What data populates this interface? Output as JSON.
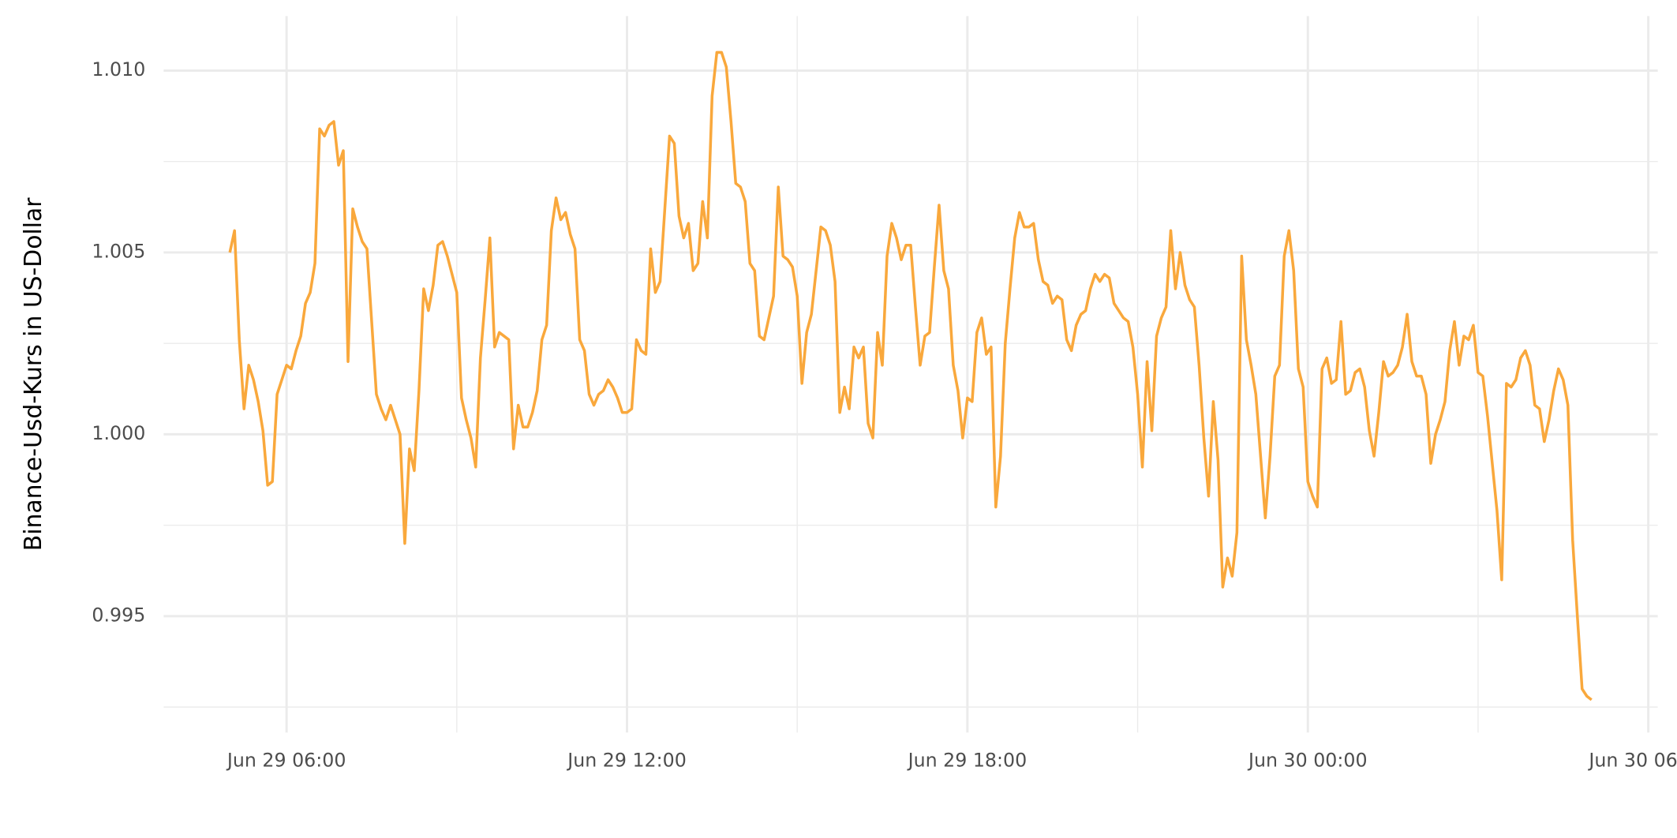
{
  "chart_data": {
    "type": "line",
    "y_label": "Binance-Usd-Kurs in US-Dollar",
    "color": "#f9a83c",
    "grid": true,
    "xlim": [
      "Jun 29 03:50",
      "Jun 30 06:10"
    ],
    "xticks": [
      "Jun 29 06:00",
      "Jun 29 12:00",
      "Jun 29 18:00",
      "Jun 30 00:00",
      "Jun 30 06:00"
    ],
    "ylim": [
      0.9918,
      1.0115
    ],
    "yticks": [
      {
        "value": 0.995,
        "label": "0.995"
      },
      {
        "value": 1.0,
        "label": "1.000"
      },
      {
        "value": 1.005,
        "label": "1.005"
      },
      {
        "value": 1.01,
        "label": "1.010"
      }
    ],
    "x": [
      "Jun 29 05:00",
      "Jun 29 05:05",
      "Jun 29 05:10",
      "Jun 29 05:15",
      "Jun 29 05:20",
      "Jun 29 05:25",
      "Jun 29 05:30",
      "Jun 29 05:35",
      "Jun 29 05:40",
      "Jun 29 05:45",
      "Jun 29 05:50",
      "Jun 29 05:55",
      "Jun 29 06:00",
      "Jun 29 06:05",
      "Jun 29 06:10",
      "Jun 29 06:15",
      "Jun 29 06:20",
      "Jun 29 06:25",
      "Jun 29 06:30",
      "Jun 29 06:35",
      "Jun 29 06:40",
      "Jun 29 06:45",
      "Jun 29 06:50",
      "Jun 29 06:55",
      "Jun 29 07:00",
      "Jun 29 07:05",
      "Jun 29 07:10",
      "Jun 29 07:15",
      "Jun 29 07:20",
      "Jun 29 07:25",
      "Jun 29 07:30",
      "Jun 29 07:35",
      "Jun 29 07:40",
      "Jun 29 07:45",
      "Jun 29 07:50",
      "Jun 29 07:55",
      "Jun 29 08:00",
      "Jun 29 08:05",
      "Jun 29 08:10",
      "Jun 29 08:15",
      "Jun 29 08:20",
      "Jun 29 08:25",
      "Jun 29 08:30",
      "Jun 29 08:35",
      "Jun 29 08:40",
      "Jun 29 08:45",
      "Jun 29 08:50",
      "Jun 29 08:55",
      "Jun 29 09:00",
      "Jun 29 09:05",
      "Jun 29 09:10",
      "Jun 29 09:15",
      "Jun 29 09:20",
      "Jun 29 09:25",
      "Jun 29 09:30",
      "Jun 29 09:35",
      "Jun 29 09:40",
      "Jun 29 09:45",
      "Jun 29 09:50",
      "Jun 29 09:55",
      "Jun 29 10:00",
      "Jun 29 10:05",
      "Jun 29 10:10",
      "Jun 29 10:15",
      "Jun 29 10:20",
      "Jun 29 10:25",
      "Jun 29 10:30",
      "Jun 29 10:35",
      "Jun 29 10:40",
      "Jun 29 10:45",
      "Jun 29 10:50",
      "Jun 29 10:55",
      "Jun 29 11:00",
      "Jun 29 11:05",
      "Jun 29 11:10",
      "Jun 29 11:15",
      "Jun 29 11:20",
      "Jun 29 11:25",
      "Jun 29 11:30",
      "Jun 29 11:35",
      "Jun 29 11:40",
      "Jun 29 11:45",
      "Jun 29 11:50",
      "Jun 29 11:55",
      "Jun 29 12:00",
      "Jun 29 12:05",
      "Jun 29 12:10",
      "Jun 29 12:15",
      "Jun 29 12:20",
      "Jun 29 12:25",
      "Jun 29 12:30",
      "Jun 29 12:35",
      "Jun 29 12:40",
      "Jun 29 12:45",
      "Jun 29 12:50",
      "Jun 29 12:55",
      "Jun 29 13:00",
      "Jun 29 13:05",
      "Jun 29 13:10",
      "Jun 29 13:15",
      "Jun 29 13:20",
      "Jun 29 13:25",
      "Jun 29 13:30",
      "Jun 29 13:35",
      "Jun 29 13:40",
      "Jun 29 13:45",
      "Jun 29 13:50",
      "Jun 29 13:55",
      "Jun 29 14:00",
      "Jun 29 14:05",
      "Jun 29 14:10",
      "Jun 29 14:15",
      "Jun 29 14:20",
      "Jun 29 14:25",
      "Jun 29 14:30",
      "Jun 29 14:35",
      "Jun 29 14:40",
      "Jun 29 14:45",
      "Jun 29 14:50",
      "Jun 29 14:55",
      "Jun 29 15:00",
      "Jun 29 15:05",
      "Jun 29 15:10",
      "Jun 29 15:15",
      "Jun 29 15:20",
      "Jun 29 15:25",
      "Jun 29 15:30",
      "Jun 29 15:35",
      "Jun 29 15:40",
      "Jun 29 15:45",
      "Jun 29 15:50",
      "Jun 29 15:55",
      "Jun 29 16:00",
      "Jun 29 16:05",
      "Jun 29 16:10",
      "Jun 29 16:15",
      "Jun 29 16:20",
      "Jun 29 16:25",
      "Jun 29 16:30",
      "Jun 29 16:35",
      "Jun 29 16:40",
      "Jun 29 16:45",
      "Jun 29 16:50",
      "Jun 29 16:55",
      "Jun 29 17:00",
      "Jun 29 17:05",
      "Jun 29 17:10",
      "Jun 29 17:15",
      "Jun 29 17:20",
      "Jun 29 17:25",
      "Jun 29 17:30",
      "Jun 29 17:35",
      "Jun 29 17:40",
      "Jun 29 17:45",
      "Jun 29 17:50",
      "Jun 29 17:55",
      "Jun 29 18:00",
      "Jun 29 18:05",
      "Jun 29 18:10",
      "Jun 29 18:15",
      "Jun 29 18:20",
      "Jun 29 18:25",
      "Jun 29 18:30",
      "Jun 29 18:35",
      "Jun 29 18:40",
      "Jun 29 18:45",
      "Jun 29 18:50",
      "Jun 29 18:55",
      "Jun 29 19:00",
      "Jun 29 19:05",
      "Jun 29 19:10",
      "Jun 29 19:15",
      "Jun 29 19:20",
      "Jun 29 19:25",
      "Jun 29 19:30",
      "Jun 29 19:35",
      "Jun 29 19:40",
      "Jun 29 19:45",
      "Jun 29 19:50",
      "Jun 29 19:55",
      "Jun 29 20:00",
      "Jun 29 20:05",
      "Jun 29 20:10",
      "Jun 29 20:15",
      "Jun 29 20:20",
      "Jun 29 20:25",
      "Jun 29 20:30",
      "Jun 29 20:35",
      "Jun 29 20:40",
      "Jun 29 20:45",
      "Jun 29 20:50",
      "Jun 29 20:55",
      "Jun 29 21:00",
      "Jun 29 21:05",
      "Jun 29 21:10",
      "Jun 29 21:15",
      "Jun 29 21:20",
      "Jun 29 21:25",
      "Jun 29 21:30",
      "Jun 29 21:35",
      "Jun 29 21:40",
      "Jun 29 21:45",
      "Jun 29 21:50",
      "Jun 29 21:55",
      "Jun 29 22:00",
      "Jun 29 22:05",
      "Jun 29 22:10",
      "Jun 29 22:15",
      "Jun 29 22:20",
      "Jun 29 22:25",
      "Jun 29 22:30",
      "Jun 29 22:35",
      "Jun 29 22:40",
      "Jun 29 22:45",
      "Jun 29 22:50",
      "Jun 29 22:55",
      "Jun 29 23:00",
      "Jun 29 23:05",
      "Jun 29 23:10",
      "Jun 29 23:15",
      "Jun 29 23:20",
      "Jun 29 23:25",
      "Jun 29 23:30",
      "Jun 29 23:35",
      "Jun 29 23:40",
      "Jun 29 23:45",
      "Jun 29 23:50",
      "Jun 29 23:55",
      "Jun 30 00:00",
      "Jun 30 00:05",
      "Jun 30 00:10",
      "Jun 30 00:15",
      "Jun 30 00:20",
      "Jun 30 00:25",
      "Jun 30 00:30",
      "Jun 30 00:35",
      "Jun 30 00:40",
      "Jun 30 00:45",
      "Jun 30 00:50",
      "Jun 30 00:55",
      "Jun 30 01:00",
      "Jun 30 01:05",
      "Jun 30 01:10",
      "Jun 30 01:15",
      "Jun 30 01:20",
      "Jun 30 01:25",
      "Jun 30 01:30",
      "Jun 30 01:35",
      "Jun 30 01:40",
      "Jun 30 01:45",
      "Jun 30 01:50",
      "Jun 30 01:55",
      "Jun 30 02:00",
      "Jun 30 02:05",
      "Jun 30 02:10",
      "Jun 30 02:15",
      "Jun 30 02:20",
      "Jun 30 02:25",
      "Jun 30 02:30",
      "Jun 30 02:35",
      "Jun 30 02:40",
      "Jun 30 02:45",
      "Jun 30 02:50",
      "Jun 30 02:55",
      "Jun 30 03:00",
      "Jun 30 03:05",
      "Jun 30 03:10",
      "Jun 30 03:15",
      "Jun 30 03:20",
      "Jun 30 03:25",
      "Jun 30 03:30",
      "Jun 30 03:35",
      "Jun 30 03:40",
      "Jun 30 03:45",
      "Jun 30 03:50",
      "Jun 30 03:55",
      "Jun 30 04:00",
      "Jun 30 04:05",
      "Jun 30 04:10",
      "Jun 30 04:15",
      "Jun 30 04:20",
      "Jun 30 04:25",
      "Jun 30 04:30",
      "Jun 30 04:35",
      "Jun 30 04:40",
      "Jun 30 04:45",
      "Jun 30 04:50",
      "Jun 30 04:55",
      "Jun 30 05:00"
    ],
    "values": [
      1.005,
      1.0056,
      1.0026,
      1.0007,
      1.0019,
      1.0015,
      1.0009,
      1.0001,
      0.9986,
      0.9987,
      1.0011,
      1.0015,
      1.0019,
      1.0018,
      1.0023,
      1.0027,
      1.0036,
      1.0039,
      1.0047,
      1.0084,
      1.0082,
      1.0085,
      1.0086,
      1.0074,
      1.0078,
      1.002,
      1.0062,
      1.0057,
      1.0053,
      1.0051,
      1.0031,
      1.0011,
      1.0007,
      1.0004,
      1.0008,
      1.0004,
      1.0,
      0.997,
      0.9996,
      0.999,
      1.0012,
      1.004,
      1.0034,
      1.0041,
      1.0052,
      1.0053,
      1.0049,
      1.0044,
      1.0039,
      1.001,
      1.0004,
      0.9999,
      0.9991,
      1.0021,
      1.0037,
      1.0054,
      1.0024,
      1.0028,
      1.0027,
      1.0026,
      0.9996,
      1.0008,
      1.0002,
      1.0002,
      1.0006,
      1.0012,
      1.0026,
      1.003,
      1.0056,
      1.0065,
      1.0059,
      1.0061,
      1.0055,
      1.0051,
      1.0026,
      1.0023,
      1.0011,
      1.0008,
      1.0011,
      1.0012,
      1.0015,
      1.0013,
      1.001,
      1.0006,
      1.0006,
      1.0007,
      1.0026,
      1.0023,
      1.0022,
      1.0051,
      1.0039,
      1.0042,
      1.0062,
      1.0082,
      1.008,
      1.006,
      1.0054,
      1.0058,
      1.0045,
      1.0047,
      1.0064,
      1.0054,
      1.0093,
      1.0105,
      1.0105,
      1.0101,
      1.0086,
      1.0069,
      1.0068,
      1.0064,
      1.0047,
      1.0045,
      1.0027,
      1.0026,
      1.0032,
      1.0038,
      1.0068,
      1.0049,
      1.0048,
      1.0046,
      1.0038,
      1.0014,
      1.0028,
      1.0033,
      1.0045,
      1.0057,
      1.0056,
      1.0052,
      1.0042,
      1.0006,
      1.0013,
      1.0007,
      1.0024,
      1.0021,
      1.0024,
      1.0003,
      0.9999,
      1.0028,
      1.0019,
      1.0049,
      1.0058,
      1.0054,
      1.0048,
      1.0052,
      1.0052,
      1.0035,
      1.0019,
      1.0027,
      1.0028,
      1.0046,
      1.0063,
      1.0045,
      1.004,
      1.0019,
      1.0012,
      0.9999,
      1.001,
      1.0009,
      1.0028,
      1.0032,
      1.0022,
      1.0024,
      0.998,
      0.9994,
      1.0025,
      1.004,
      1.0054,
      1.0061,
      1.0057,
      1.0057,
      1.0058,
      1.0048,
      1.0042,
      1.0041,
      1.0036,
      1.0038,
      1.0037,
      1.0026,
      1.0023,
      1.003,
      1.0033,
      1.0034,
      1.004,
      1.0044,
      1.0042,
      1.0044,
      1.0043,
      1.0036,
      1.0034,
      1.0032,
      1.0031,
      1.0024,
      1.0011,
      0.9991,
      1.002,
      1.0001,
      1.0027,
      1.0032,
      1.0035,
      1.0056,
      1.004,
      1.005,
      1.0041,
      1.0037,
      1.0035,
      1.0019,
      0.9999,
      0.9983,
      1.0009,
      0.9993,
      0.9958,
      0.9966,
      0.9961,
      0.9973,
      1.0049,
      1.0026,
      1.0019,
      1.0011,
      0.9994,
      0.9977,
      0.9994,
      1.0016,
      1.0019,
      1.0049,
      1.0056,
      1.0045,
      1.0018,
      1.0013,
      0.9987,
      0.9983,
      0.998,
      1.0018,
      1.0021,
      1.0014,
      1.0015,
      1.0031,
      1.0011,
      1.0012,
      1.0017,
      1.0018,
      1.0013,
      1.0001,
      0.9994,
      1.0006,
      1.002,
      1.0016,
      1.0017,
      1.0019,
      1.0024,
      1.0033,
      1.002,
      1.0016,
      1.0016,
      1.0011,
      0.9992,
      1.0,
      1.0004,
      1.0009,
      1.0023,
      1.0031,
      1.0019,
      1.0027,
      1.0026,
      1.003,
      1.0017,
      1.0016,
      1.0005,
      0.9992,
      0.9979,
      0.996,
      1.0014,
      1.0013,
      1.0015,
      1.0021,
      1.0023,
      1.0019,
      1.0008,
      1.0007,
      0.9998,
      1.0004,
      1.0012,
      1.0018,
      1.0015,
      1.0008,
      0.9971,
      0.995,
      0.993,
      0.9928,
      0.9927
    ]
  }
}
